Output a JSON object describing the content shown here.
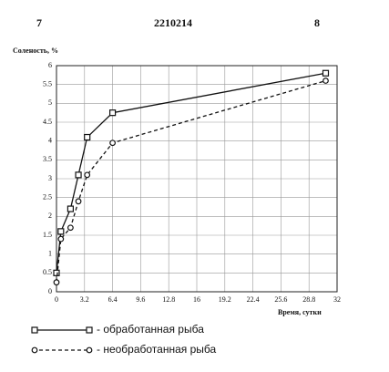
{
  "header": {
    "left": "7",
    "center": "2210214",
    "right": "8"
  },
  "chart_data": {
    "type": "line",
    "ylabel": "Соленость, %",
    "xlabel": "Время, сутки",
    "x": [
      0,
      0.5,
      1.6,
      2.5,
      3.5,
      6.4,
      30.7
    ],
    "series": [
      {
        "name": "- обработанная рыба",
        "color": "#111111",
        "marker": "square",
        "dashed": false,
        "values": [
          0.5,
          1.6,
          2.2,
          3.1,
          4.1,
          4.75,
          5.8
        ]
      },
      {
        "name": "- необработанная рыба",
        "color": "#111111",
        "marker": "circle",
        "dashed": true,
        "values": [
          0.25,
          1.4,
          1.7,
          2.4,
          3.1,
          3.95,
          5.6
        ]
      }
    ],
    "xlim": [
      0,
      32
    ],
    "xticks": [
      0,
      {
        "value": 3.2,
        "label": "3.2"
      },
      {
        "value": 6.4,
        "label": "6.4"
      },
      {
        "value": 9.6,
        "label": "9.6"
      },
      {
        "value": 12.8,
        "label": "12.8"
      },
      16,
      {
        "value": 19.2,
        "label": "19.2"
      },
      {
        "value": 22.4,
        "label": "22.4"
      },
      {
        "value": 25.6,
        "label": "25.6"
      },
      {
        "value": 28.8,
        "label": "28.8"
      },
      32
    ],
    "ylim": [
      0,
      6
    ],
    "yticks": [
      0,
      0.5,
      1,
      1.5,
      2,
      2.5,
      3,
      3.5,
      4,
      4.5,
      5,
      5.5,
      6
    ],
    "grid": true
  }
}
